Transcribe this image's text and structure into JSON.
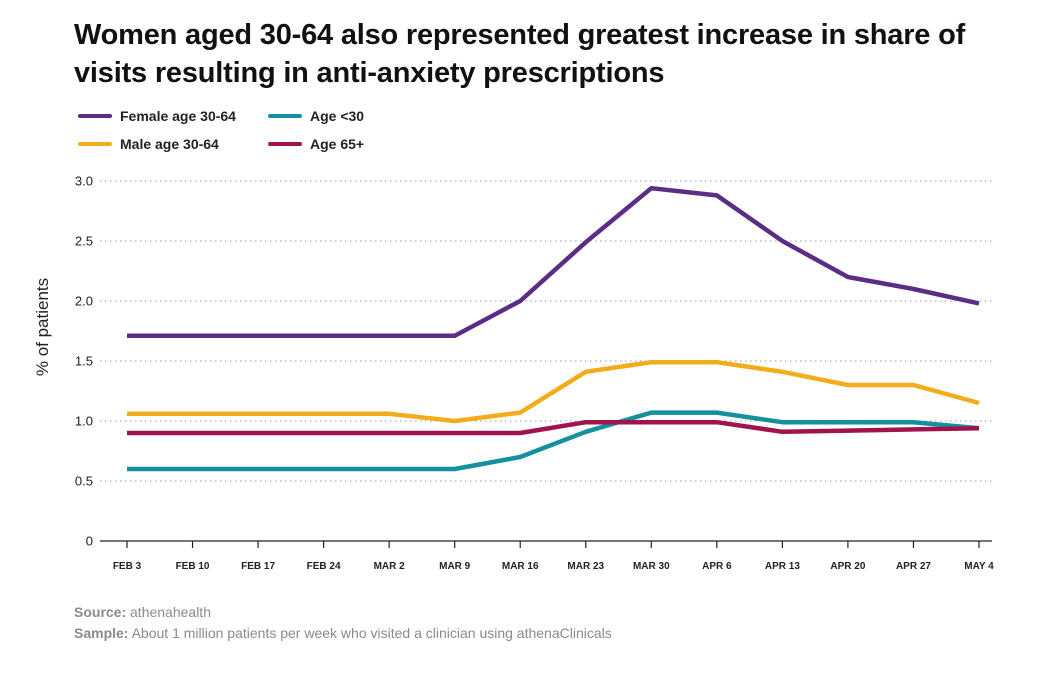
{
  "title": "Women aged 30-64 also represented greatest increase in share of visits resulting in anti-anxiety prescriptions",
  "footer": {
    "source_label": "Source:",
    "source_text": "athenahealth",
    "sample_label": "Sample:",
    "sample_text": "About 1 million patients per week who visited a clinician using athenaClinicals"
  },
  "chart_data": {
    "type": "line",
    "title": "Women aged 30-64 also represented greatest increase in share of visits resulting in anti-anxiety prescriptions",
    "xlabel": "",
    "ylabel": "% of patients",
    "x": [
      "FEB 3",
      "FEB 10",
      "FEB 17",
      "FEB 24",
      "MAR 2",
      "MAR 9",
      "MAR 16",
      "MAR 23",
      "MAR 30",
      "APR 6",
      "APR 13",
      "APR 20",
      "APR 27",
      "MAY 4"
    ],
    "ylim": [
      0,
      3.0
    ],
    "yticks": [
      0,
      0.5,
      1.0,
      1.5,
      2.0,
      2.5,
      3.0
    ],
    "ytick_labels": [
      "0",
      "0.5",
      "1.0",
      "1.5",
      "2.0",
      "2.5",
      "3.0"
    ],
    "grid": "horizontal dotted",
    "legend_position": "top-left",
    "series": [
      {
        "name": "Female age 30-64",
        "color": "#5b2d86",
        "values": [
          1.71,
          1.71,
          1.71,
          1.71,
          1.71,
          1.71,
          2.0,
          2.49,
          2.94,
          2.88,
          2.5,
          2.2,
          2.1,
          1.98
        ]
      },
      {
        "name": "Age <30",
        "color": "#14909e",
        "values": [
          0.6,
          0.6,
          0.6,
          0.6,
          0.6,
          0.6,
          0.7,
          0.91,
          1.07,
          1.07,
          0.99,
          0.99,
          0.99,
          0.94
        ]
      },
      {
        "name": "Male age 30-64",
        "color": "#f2ac1c",
        "values": [
          1.06,
          1.06,
          1.06,
          1.06,
          1.06,
          1.0,
          1.07,
          1.41,
          1.49,
          1.49,
          1.41,
          1.3,
          1.3,
          1.15
        ]
      },
      {
        "name": "Age 65+",
        "color": "#a0134f",
        "values": [
          0.9,
          0.9,
          0.9,
          0.9,
          0.9,
          0.9,
          0.9,
          0.99,
          0.99,
          0.99,
          0.91,
          0.92,
          0.93,
          0.94
        ]
      }
    ]
  }
}
